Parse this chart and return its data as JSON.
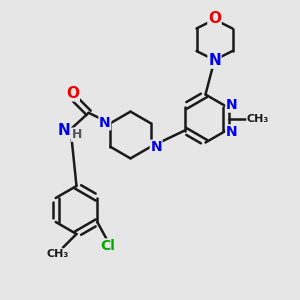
{
  "bg_color": "#e6e6e6",
  "bond_color": "#1a1a1a",
  "bond_width": 1.8,
  "atom_colors": {
    "N": "#0000ee",
    "O": "#ee0000",
    "Cl": "#00aa00",
    "H": "#555555",
    "C": "#1a1a1a"
  },
  "font_size_atom": 10,
  "font_size_small": 8
}
